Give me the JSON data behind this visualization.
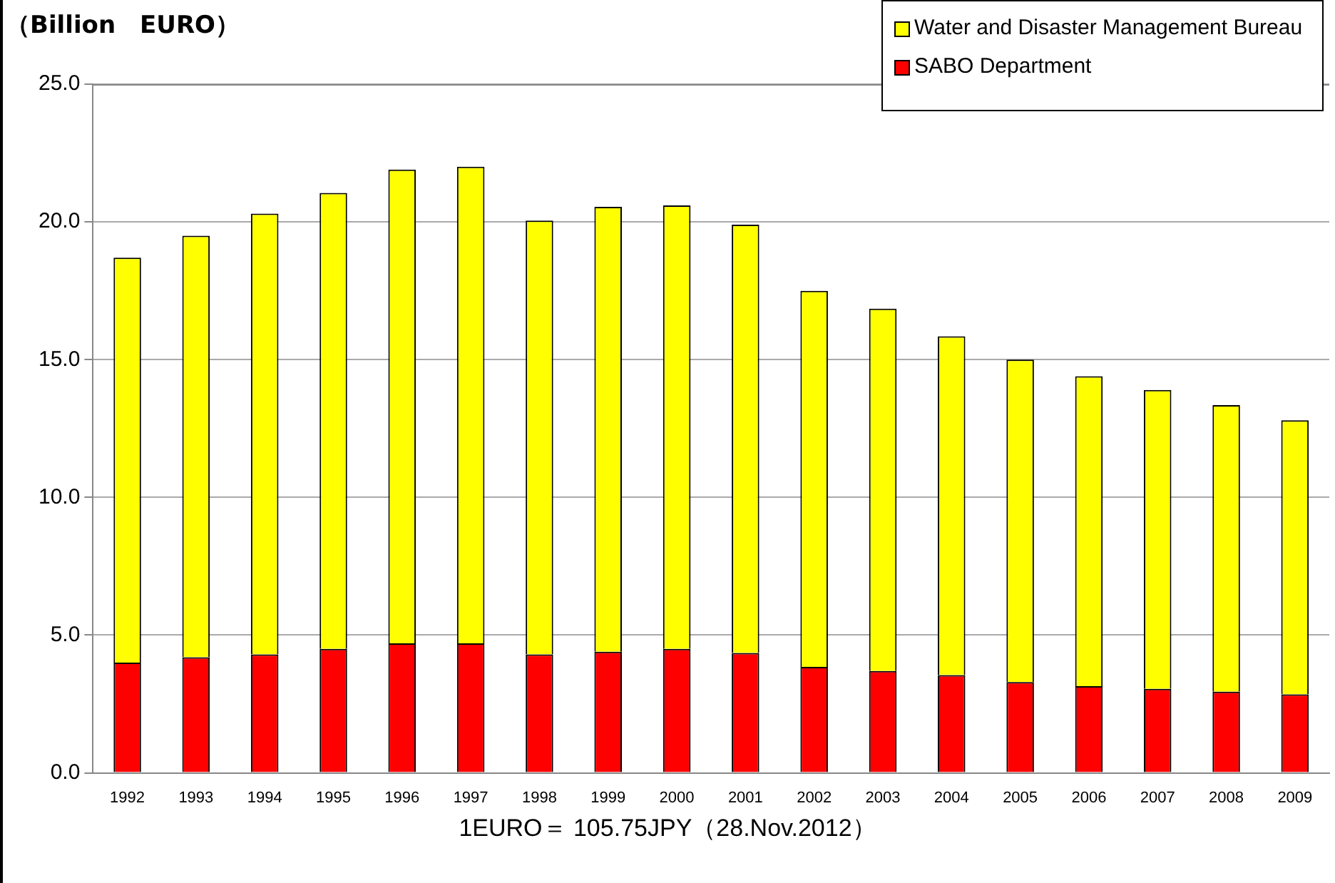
{
  "chart_data": {
    "type": "bar",
    "ylabel": "（Billion　EURO）",
    "stacked": true,
    "legend": "top right",
    "grid": "y",
    "categories": [
      "1992",
      "1993",
      "1994",
      "1995",
      "1996",
      "1997",
      "1998",
      "1999",
      "2000",
      "2001",
      "2002",
      "2003",
      "2004",
      "2005",
      "2006",
      "2007",
      "2008",
      "2009"
    ],
    "series": [
      {
        "name": "SABO Department",
        "color": "#ff0000",
        "values": [
          4.0,
          4.2,
          4.3,
          4.5,
          4.7,
          4.7,
          4.3,
          4.4,
          4.5,
          4.35,
          3.85,
          3.7,
          3.55,
          3.3,
          3.15,
          3.05,
          2.95,
          2.85
        ]
      },
      {
        "name": "Water and Disaster Management Bureau",
        "color": "#ffff00",
        "values": [
          14.7,
          15.3,
          16.0,
          16.55,
          17.2,
          17.3,
          15.75,
          16.15,
          16.1,
          15.55,
          13.65,
          13.15,
          12.3,
          11.7,
          11.25,
          10.85,
          10.4,
          9.95
        ]
      }
    ],
    "ylim": [
      0,
      25
    ],
    "yticks": [
      {
        "value": 0,
        "label": "0.0"
      },
      {
        "value": 5,
        "label": "5.0"
      },
      {
        "value": 10,
        "label": "10.0"
      },
      {
        "value": 15,
        "label": "15.0"
      },
      {
        "value": 20,
        "label": "20.0"
      },
      {
        "value": 25,
        "label": "25.0"
      }
    ],
    "annotations": [
      "1EURO＝ 105.75JPY（28.Nov.2012）"
    ]
  }
}
